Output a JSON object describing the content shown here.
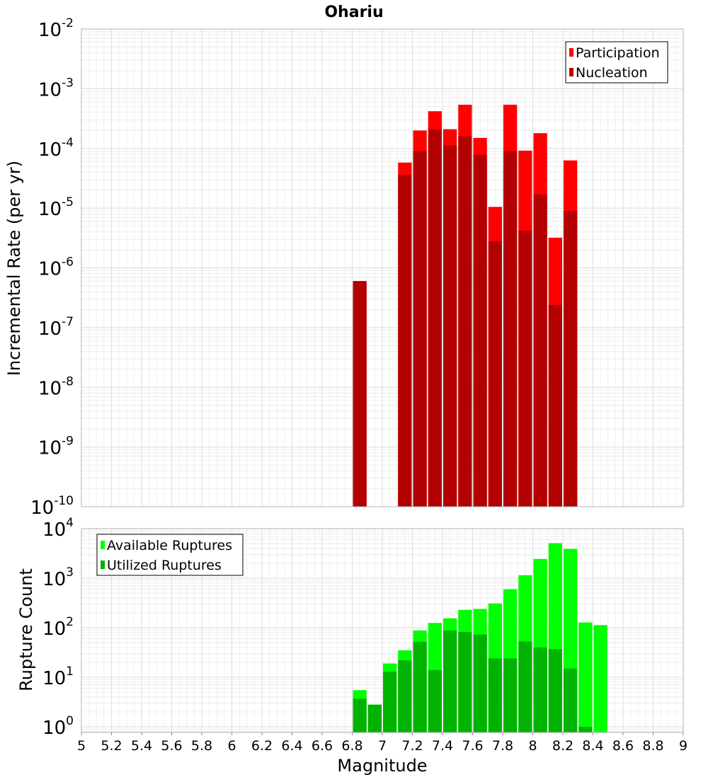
{
  "chart_data": [
    {
      "type": "bar",
      "title": "Ohariu",
      "xlabel": "",
      "ylabel": "Incremental Rate (per yr)",
      "yscale": "log",
      "ylim": [
        1e-10,
        0.01
      ],
      "xlim": [
        5,
        9
      ],
      "y_tick_exponents": [
        "-10",
        "-9",
        "-8",
        "-7",
        "-6",
        "-5",
        "-4",
        "-3",
        "-2"
      ],
      "bar_width": 0.1,
      "grid": true,
      "legend_position": "top-right",
      "series": [
        {
          "name": "Participation",
          "color": "#ff0000",
          "points": [
            {
              "x": 6.85,
              "y": 6e-07
            },
            {
              "x": 7.15,
              "y": 5.8e-05
            },
            {
              "x": 7.25,
              "y": 0.0002
            },
            {
              "x": 7.35,
              "y": 0.00042
            },
            {
              "x": 7.45,
              "y": 0.00021
            },
            {
              "x": 7.55,
              "y": 0.00054
            },
            {
              "x": 7.65,
              "y": 0.00015
            },
            {
              "x": 7.75,
              "y": 1.05e-05
            },
            {
              "x": 7.85,
              "y": 0.00054
            },
            {
              "x": 7.95,
              "y": 9.2e-05
            },
            {
              "x": 8.05,
              "y": 0.00018
            },
            {
              "x": 8.15,
              "y": 3.2e-06
            },
            {
              "x": 8.25,
              "y": 6.3e-05
            }
          ]
        },
        {
          "name": "Nucleation",
          "color": "#b30000",
          "points": [
            {
              "x": 6.85,
              "y": 6e-07
            },
            {
              "x": 7.15,
              "y": 3.6e-05
            },
            {
              "x": 7.25,
              "y": 9e-05
            },
            {
              "x": 7.35,
              "y": 0.00021
            },
            {
              "x": 7.45,
              "y": 0.000112
            },
            {
              "x": 7.55,
              "y": 0.00016
            },
            {
              "x": 7.65,
              "y": 7.8e-05
            },
            {
              "x": 7.75,
              "y": 2.8e-06
            },
            {
              "x": 7.85,
              "y": 9e-05
            },
            {
              "x": 7.95,
              "y": 4.2e-06
            },
            {
              "x": 8.05,
              "y": 1.7e-05
            },
            {
              "x": 8.15,
              "y": 2.4e-07
            },
            {
              "x": 8.25,
              "y": 9e-06
            }
          ]
        }
      ]
    },
    {
      "type": "bar",
      "title": "",
      "xlabel": "Magnitude",
      "ylabel": "Rupture Count",
      "yscale": "log",
      "ylim": [
        0.77,
        10000
      ],
      "xlim": [
        5,
        9
      ],
      "x_ticks": [
        "5",
        "5.2",
        "5.4",
        "5.6",
        "5.8",
        "6",
        "6.2",
        "6.4",
        "6.6",
        "6.8",
        "7",
        "7.2",
        "7.4",
        "7.6",
        "7.8",
        "8",
        "8.2",
        "8.4",
        "8.6",
        "8.8",
        "9"
      ],
      "y_tick_exponents": [
        "0",
        "1",
        "2",
        "3",
        "4"
      ],
      "bar_width": 0.1,
      "grid": true,
      "legend_position": "top-left",
      "series": [
        {
          "name": "Available Ruptures",
          "color": "#00ff00",
          "points": [
            {
              "x": 6.85,
              "y": 5.5
            },
            {
              "x": 6.95,
              "y": 2.8
            },
            {
              "x": 7.05,
              "y": 19
            },
            {
              "x": 7.15,
              "y": 35
            },
            {
              "x": 7.25,
              "y": 88
            },
            {
              "x": 7.35,
              "y": 125
            },
            {
              "x": 7.45,
              "y": 155
            },
            {
              "x": 7.55,
              "y": 230
            },
            {
              "x": 7.65,
              "y": 240
            },
            {
              "x": 7.75,
              "y": 310
            },
            {
              "x": 7.85,
              "y": 600
            },
            {
              "x": 7.95,
              "y": 1150
            },
            {
              "x": 8.05,
              "y": 2450
            },
            {
              "x": 8.15,
              "y": 5100
            },
            {
              "x": 8.25,
              "y": 3900
            },
            {
              "x": 8.35,
              "y": 128
            },
            {
              "x": 8.45,
              "y": 113
            }
          ]
        },
        {
          "name": "Utilized Ruptures",
          "color": "#00b300",
          "points": [
            {
              "x": 6.85,
              "y": 3.7
            },
            {
              "x": 6.95,
              "y": 2.8
            },
            {
              "x": 7.05,
              "y": 13
            },
            {
              "x": 7.15,
              "y": 22
            },
            {
              "x": 7.25,
              "y": 52
            },
            {
              "x": 7.35,
              "y": 14
            },
            {
              "x": 7.45,
              "y": 88
            },
            {
              "x": 7.55,
              "y": 82
            },
            {
              "x": 7.65,
              "y": 73
            },
            {
              "x": 7.75,
              "y": 24
            },
            {
              "x": 7.85,
              "y": 24
            },
            {
              "x": 7.95,
              "y": 53
            },
            {
              "x": 8.05,
              "y": 40
            },
            {
              "x": 8.15,
              "y": 37
            },
            {
              "x": 8.25,
              "y": 15
            },
            {
              "x": 8.35,
              "y": 1.0
            }
          ]
        }
      ]
    }
  ]
}
